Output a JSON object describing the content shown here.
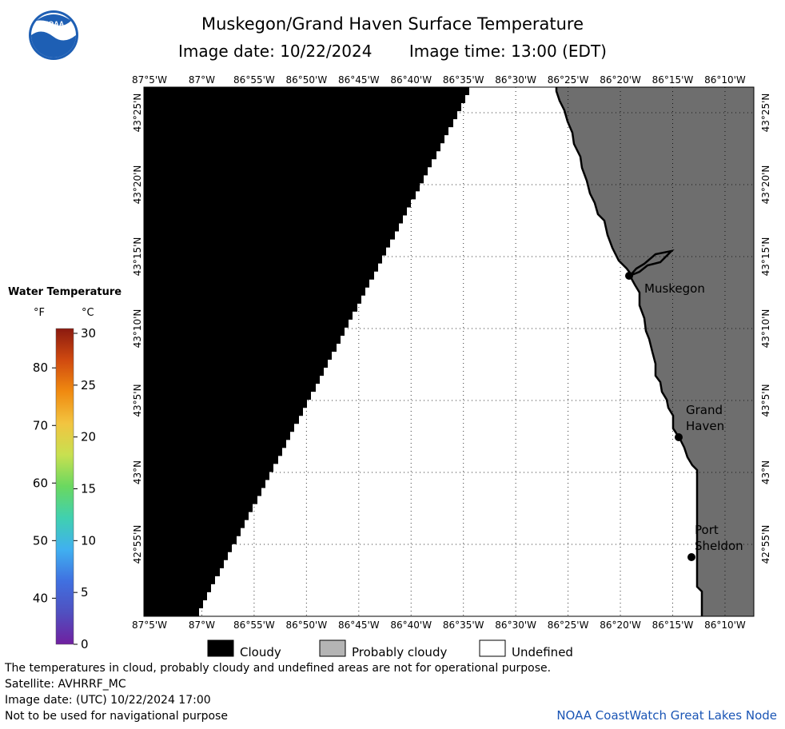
{
  "header": {
    "title": "Muskegon/Grand Haven Surface Temperature",
    "image_date_label": "Image date: 10/22/2024",
    "image_time_label": "Image time: 13:00 (EDT)"
  },
  "logo": {
    "text": "NOAA"
  },
  "map": {
    "lon_labels": [
      "87°5'W",
      "87°W",
      "86°55'W",
      "86°50'W",
      "86°45'W",
      "86°40'W",
      "86°35'W",
      "86°30'W",
      "86°25'W",
      "86°20'W",
      "86°15'W",
      "86°10'W"
    ],
    "lat_labels": [
      "43°25'N",
      "43°20'N",
      "43°15'N",
      "43°10'N",
      "43°5'N",
      "43°N",
      "42°55'N"
    ],
    "cities": [
      {
        "name_lines": [
          "Muskegon"
        ]
      },
      {
        "name_lines": [
          "Grand",
          "Haven"
        ]
      },
      {
        "name_lines": [
          "Port",
          "Sheldon"
        ]
      }
    ]
  },
  "colorbar": {
    "title": "Water Temperature",
    "unit_f": "°F",
    "unit_c": "°C",
    "f_ticks": [
      "80",
      "70",
      "60",
      "50",
      "40"
    ],
    "c_ticks": [
      "30",
      "25",
      "20",
      "15",
      "10",
      "5",
      "0"
    ],
    "colors": [
      "#8b1a10",
      "#d04a10",
      "#f08a10",
      "#f2c440",
      "#c8e050",
      "#6ad860",
      "#40d0b0",
      "#40b0f0",
      "#4070e0",
      "#5050c0",
      "#7020a0"
    ]
  },
  "legend": [
    {
      "label": "Cloudy",
      "color": "#000000"
    },
    {
      "label": "Probably cloudy",
      "color": "#b4b4b4"
    },
    {
      "label": "Undefined",
      "color": "#ffffff"
    }
  ],
  "footer": {
    "line1": "The temperatures in cloud, probably cloudy and undefined areas are not for operational purpose.",
    "line2": "Satellite: AVHRRF_MC",
    "line3": "Image date: (UTC) 10/22/2024  17:00",
    "line4": "Not to be used for navigational purpose",
    "credit": "NOAA CoastWatch Great Lakes Node"
  },
  "land_color": "#6e6e6e",
  "cloud_color": "#000000"
}
